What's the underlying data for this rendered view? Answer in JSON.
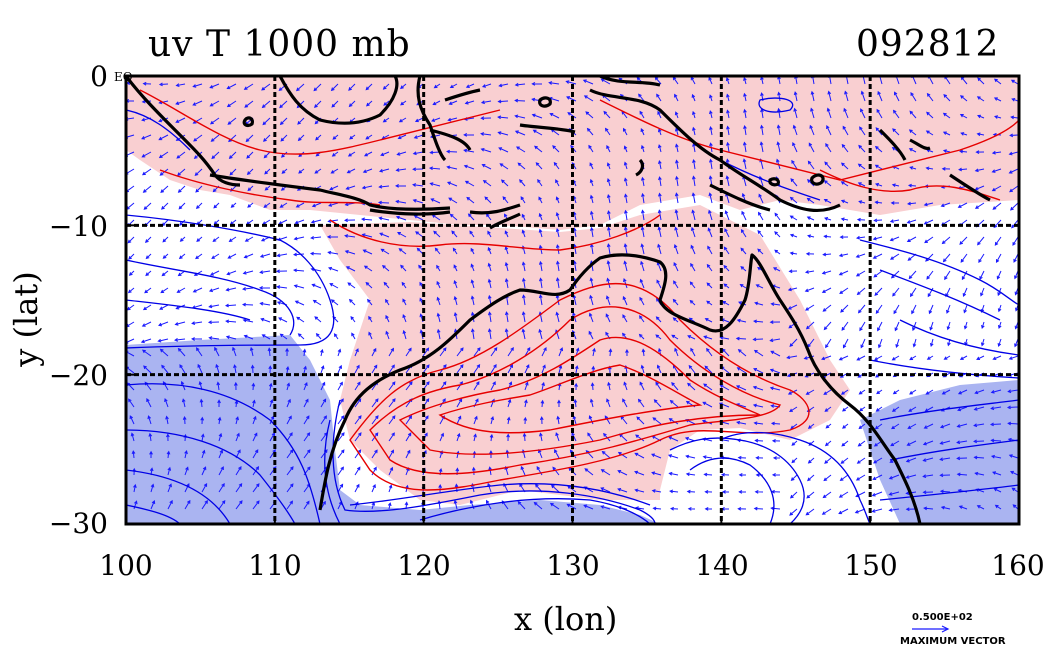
{
  "titles": {
    "left": "uv T 1000 mb",
    "right": "092812"
  },
  "axes": {
    "xlabel": "x (lon)",
    "ylabel": "y (lat)",
    "xticks": [
      "100",
      "110",
      "120",
      "130",
      "140",
      "150",
      "160"
    ],
    "yticks": [
      "0",
      "−10",
      "−20",
      "−30"
    ],
    "xlim": [
      100,
      160
    ],
    "ylim": [
      -30,
      0
    ],
    "grid": true
  },
  "annotations": {
    "eq": "EQ",
    "vector_value": "0.500E+02",
    "vector_label": "MAXIMUM VECTOR"
  },
  "colors": {
    "warm_fill": "#f9cfd1",
    "cold_fill": "#aab4f1",
    "neutral_fill": "#ffffff",
    "warm_contour": "#e60000",
    "cold_contour": "#0000e6",
    "vector": "#1a1aff",
    "coast": "#000000"
  },
  "map": {
    "type": "contour-vector",
    "field": "temperature and wind at 1000 mb",
    "region": "Maritime Continent / Australia"
  }
}
